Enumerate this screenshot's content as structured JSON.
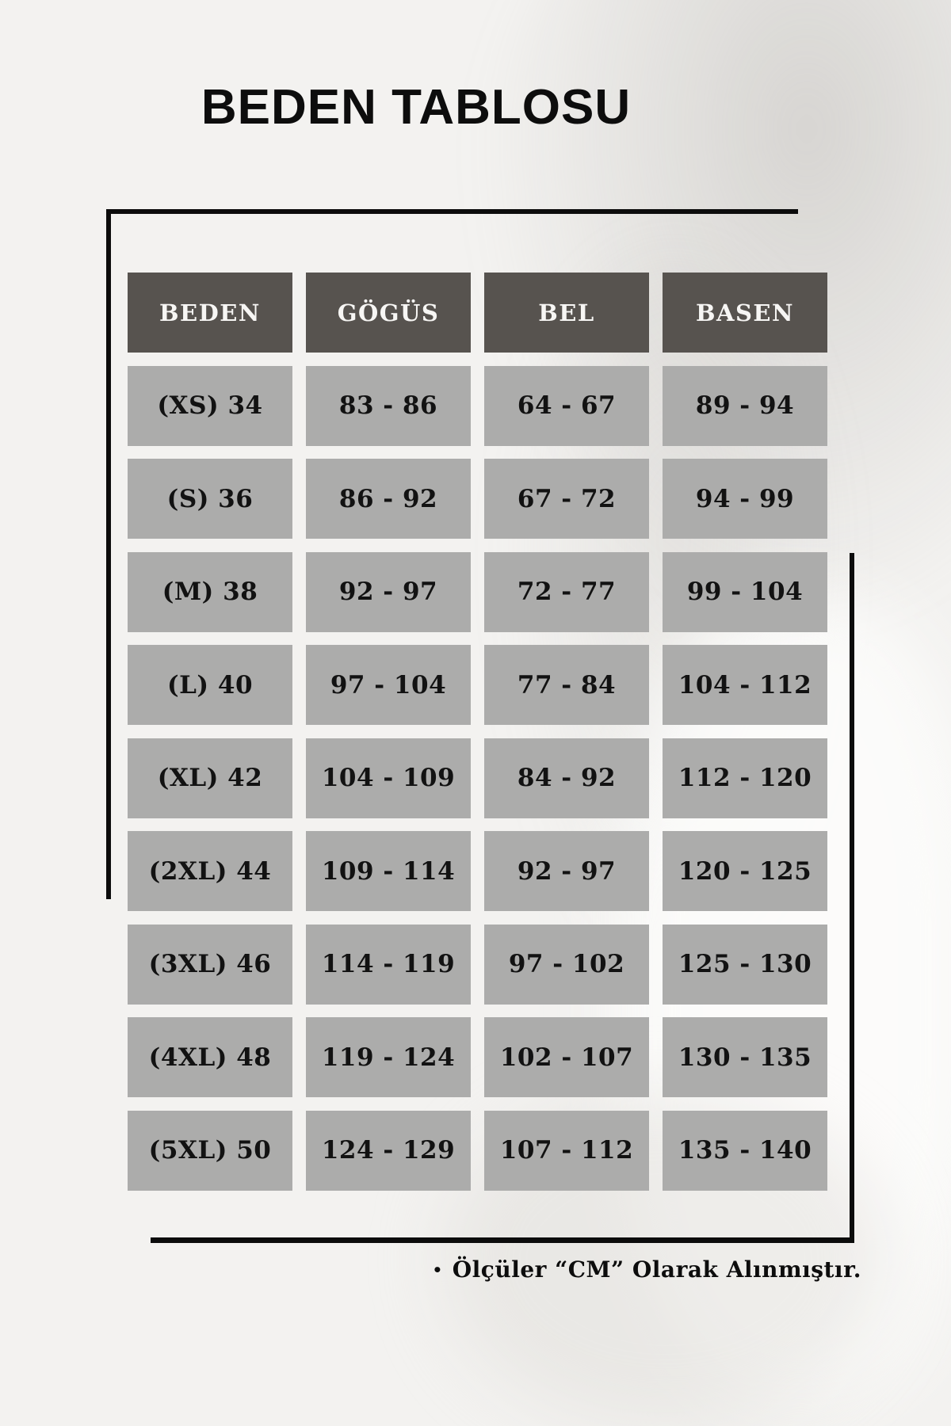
{
  "page": {
    "title": "BEDEN TABLOSU",
    "footnote_bullet": "•",
    "footnote": "Ölçüler “CM” Olarak Alınmıştır."
  },
  "colors": {
    "page_background": "#f3f2f0",
    "header_cell_background": "#57534f",
    "header_cell_text": "#f7f6f4",
    "data_cell_background": "#acacab",
    "data_cell_text": "#121212",
    "frame_line": "#0c0c0c"
  },
  "chart_data": {
    "type": "table",
    "title": "BEDEN TABLOSU",
    "columns": [
      "BEDEN",
      "GÖGÜS",
      "BEL",
      "BASEN"
    ],
    "rows": [
      [
        "(XS) 34",
        "83 - 86",
        "64 - 67",
        "89 - 94"
      ],
      [
        "(S) 36",
        "86 - 92",
        "67 - 72",
        "94 - 99"
      ],
      [
        "(M) 38",
        "92 - 97",
        "72 - 77",
        "99 - 104"
      ],
      [
        "(L) 40",
        "97 - 104",
        "77 - 84",
        "104 - 112"
      ],
      [
        "(XL) 42",
        "104 - 109",
        "84 - 92",
        "112 - 120"
      ],
      [
        "(2XL) 44",
        "109 - 114",
        "92 - 97",
        "120 - 125"
      ],
      [
        "(3XL) 46",
        "114 - 119",
        "97 - 102",
        "125 - 130"
      ],
      [
        "(4XL) 48",
        "119 - 124",
        "102 - 107",
        "130 - 135"
      ],
      [
        "(5XL) 50",
        "124 - 129",
        "107 - 112",
        "135 - 140"
      ]
    ],
    "note": "Ölçüler “CM” Olarak Alınmıştır.",
    "units": "cm"
  }
}
